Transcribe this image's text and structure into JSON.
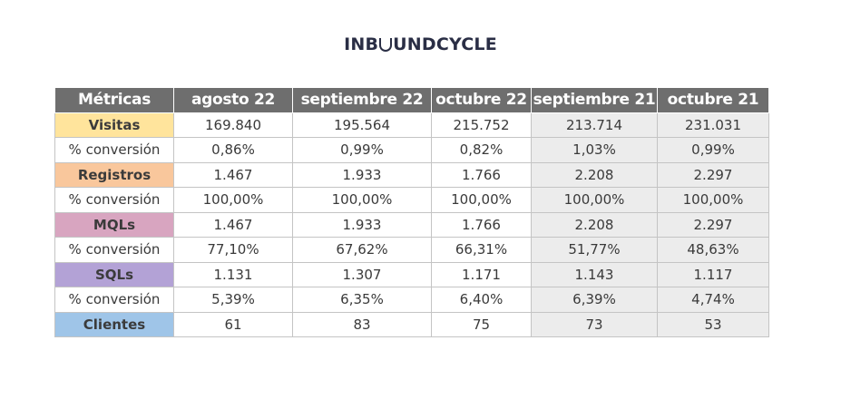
{
  "logo": {
    "part1": "INB",
    "part2": "UNDCYCLE",
    "icon": "o-arc-icon"
  },
  "table": {
    "headers": [
      "Métricas",
      "agosto 22",
      "septiembre 22",
      "octubre 22",
      "septiembre 21",
      "octubre 21"
    ],
    "rows": [
      {
        "label": "Visitas",
        "type": "metric",
        "color": "#ffe49c",
        "values": [
          "169.840",
          "195.564",
          "215.752",
          "213.714",
          "231.031"
        ]
      },
      {
        "label": "% conversión",
        "type": "rate",
        "values": [
          "0,86%",
          "0,99%",
          "0,82%",
          "1,03%",
          "0,99%"
        ]
      },
      {
        "label": "Registros",
        "type": "metric",
        "color": "#f9c79c",
        "values": [
          "1.467",
          "1.933",
          "1.766",
          "2.208",
          "2.297"
        ]
      },
      {
        "label": "% conversión",
        "type": "rate",
        "values": [
          "100,00%",
          "100,00%",
          "100,00%",
          "100,00%",
          "100,00%"
        ]
      },
      {
        "label": "MQLs",
        "type": "metric",
        "color": "#d8a5c0",
        "values": [
          "1.467",
          "1.933",
          "1.766",
          "2.208",
          "2.297"
        ]
      },
      {
        "label": "% conversión",
        "type": "rate",
        "values": [
          "77,10%",
          "67,62%",
          "66,31%",
          "51,77%",
          "48,63%"
        ]
      },
      {
        "label": "SQLs",
        "type": "metric",
        "color": "#b3a2d6",
        "values": [
          "1.131",
          "1.307",
          "1.171",
          "1.143",
          "1.117"
        ]
      },
      {
        "label": "% conversión",
        "type": "rate",
        "values": [
          "5,39%",
          "6,35%",
          "6,40%",
          "6,39%",
          "4,74%"
        ]
      },
      {
        "label": "Clientes",
        "type": "metric",
        "color": "#9fc5e8",
        "values": [
          "61",
          "83",
          "75",
          "73",
          "53"
        ]
      }
    ],
    "header_bg": "#6e6e6e",
    "shaded_bg": "#ececec"
  }
}
